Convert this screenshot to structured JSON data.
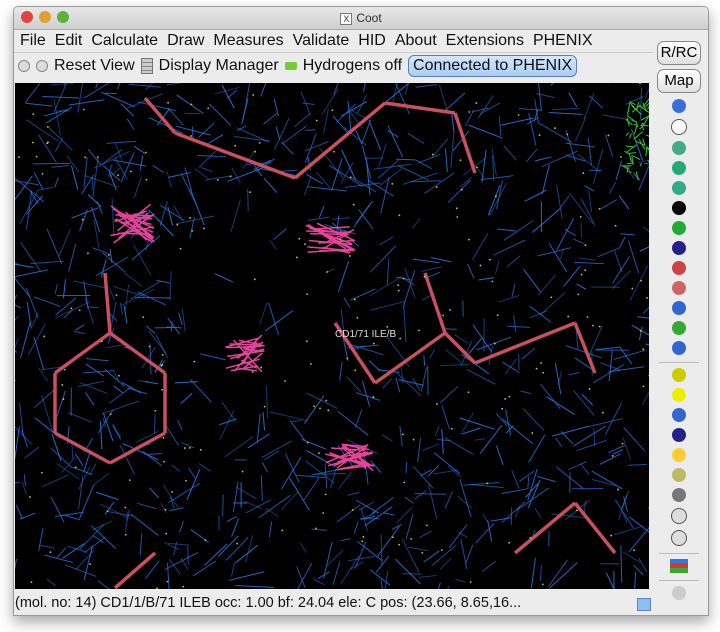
{
  "window": {
    "title": "Coot",
    "title_icon": "X"
  },
  "menu": [
    "File",
    "Edit",
    "Calculate",
    "Draw",
    "Measures",
    "Validate",
    "HID",
    "About",
    "Extensions",
    "PHENIX"
  ],
  "toolbar": {
    "reset_view": "Reset View",
    "display_manager": "Display Manager",
    "hydrogens": "Hydrogens off",
    "connected": "Connected to PHENIX"
  },
  "side": {
    "rrc": "R/RC",
    "map": "Map",
    "icons": [
      "sphere-icon",
      "clock-icon",
      "anchor-icon",
      "real-space-refine-icon",
      "regularize-icon",
      "arrow-icon",
      "rigid-body-icon",
      "edit-chi-icon",
      "rotamer-icon",
      "torsion-icon",
      "flip-peptide-icon",
      "side-chain-icon",
      "backrub-icon",
      "sep",
      "pointer-atom-icon",
      "radioactive-icon",
      "add-atom-icon",
      "add-terminal-icon",
      "add-alt-conf-icon",
      "stamp-icon",
      "delete-icon",
      "undo-icon",
      "redo-icon",
      "sep",
      "flag-icon",
      "sep",
      "play-icon"
    ]
  },
  "canvas": {
    "atom_label": "CD1/71 ILE/B"
  },
  "colors": {
    "map": "#2a6fd6",
    "bond": "#c85060",
    "accent": "#a9cdf3"
  },
  "status": "(mol. no: 14)  CD1/1/B/71 ILEB occ:  1.00 bf: 24.04 ele:  C pos: (23.66, 8.65,16..."
}
